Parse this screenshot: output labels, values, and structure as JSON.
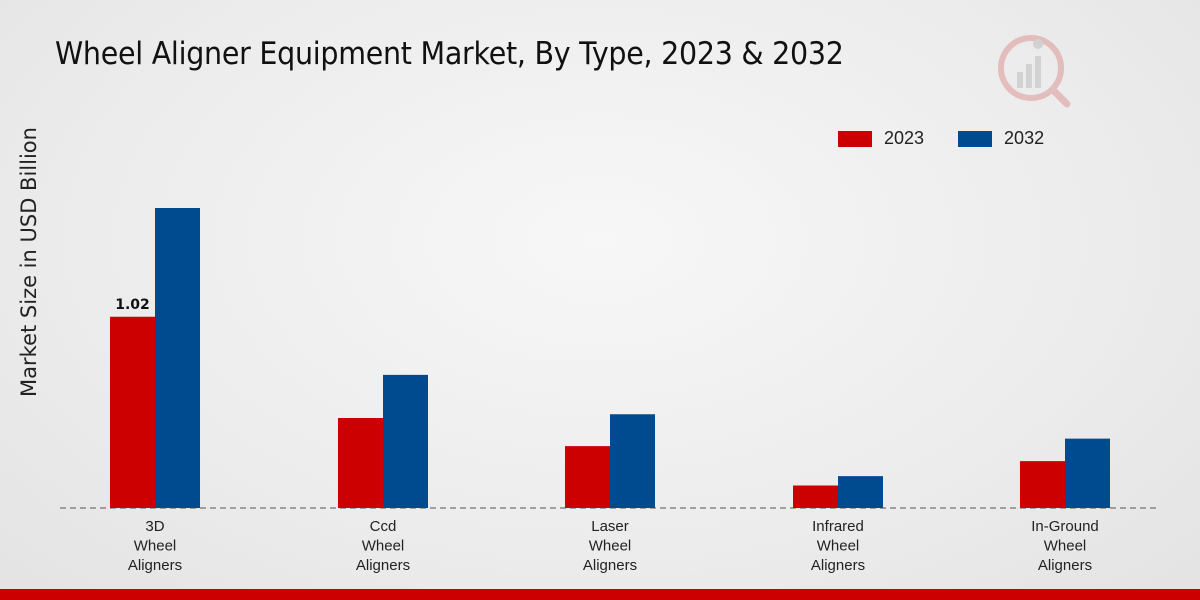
{
  "chart_data": {
    "type": "bar",
    "title": "Wheel Aligner Equipment Market, By Type, 2023 & 2032",
    "xlabel": "",
    "ylabel": "Market Size in USD Billion",
    "categories": [
      [
        "3D",
        "Wheel",
        "Aligners"
      ],
      [
        "Ccd",
        "Wheel",
        "Aligners"
      ],
      [
        "Laser",
        "Wheel",
        "Aligners"
      ],
      [
        "Infrared",
        "Wheel",
        "Aligners"
      ],
      [
        "In-Ground",
        "Wheel",
        "Aligners"
      ]
    ],
    "series": [
      {
        "name": "2023",
        "color": "#cc0000",
        "values": [
          1.02,
          0.48,
          0.33,
          0.12,
          0.25
        ]
      },
      {
        "name": "2032",
        "color": "#004a8f",
        "values": [
          1.6,
          0.71,
          0.5,
          0.17,
          0.37
        ]
      }
    ],
    "data_labels": [
      {
        "series": 0,
        "index": 0,
        "text": "1.02"
      }
    ],
    "ylim": [
      0,
      2.5
    ],
    "grid": false,
    "legend_position": "top-right"
  }
}
